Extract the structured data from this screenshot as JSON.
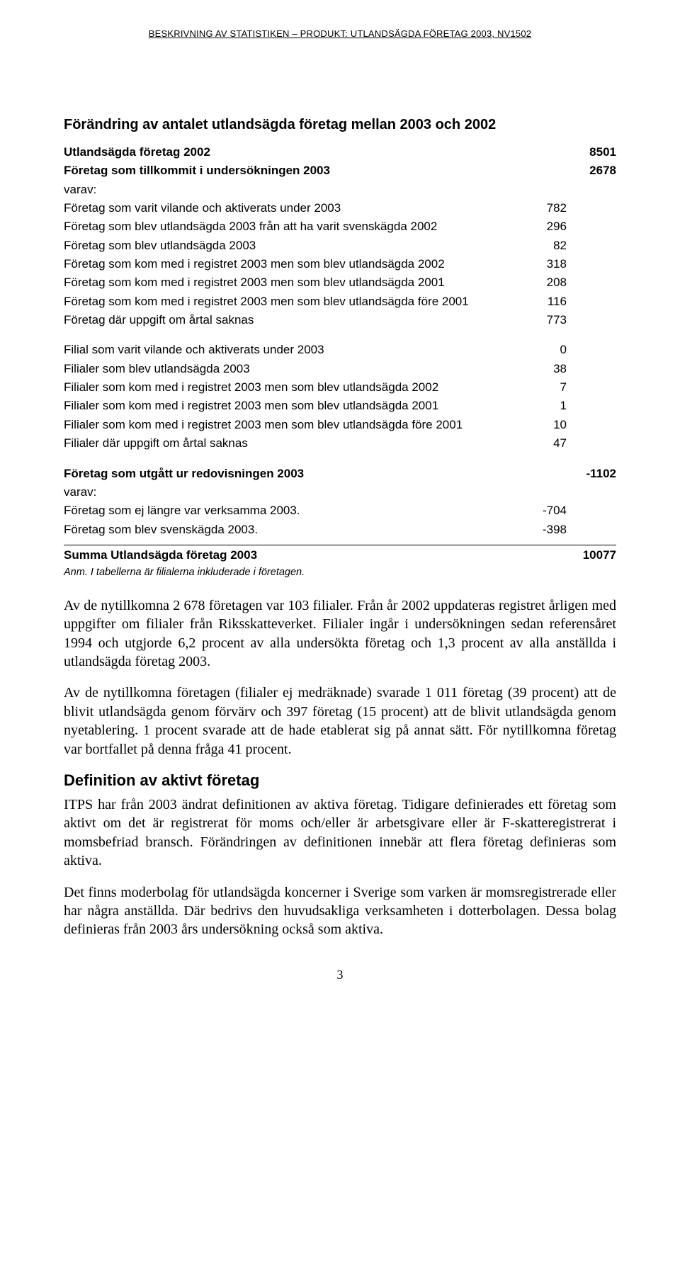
{
  "header": "BESKRIVNING AV STATISTIKEN – PRODUKT: UTLANDSÄGDA FÖRETAG 2003, NV1502",
  "table": {
    "title": "Förändring av antalet utlandsägda företag mellan 2003 och 2002",
    "rows_top": [
      {
        "label": "Utlandsägda företag 2002",
        "v1": "",
        "v2": "8501",
        "bold": true
      },
      {
        "label": "Företag som tillkommit i undersökningen 2003",
        "v1": "",
        "v2": "2678",
        "bold": true
      },
      {
        "label": "varav:",
        "v1": "",
        "v2": "",
        "bold": false
      },
      {
        "label": "Företag som varit vilande och aktiverats under 2003",
        "v1": "782",
        "v2": "",
        "bold": false
      },
      {
        "label": "Företag som blev utlandsägda 2003 från att ha varit svenskägda 2002",
        "v1": "296",
        "v2": "",
        "bold": false
      },
      {
        "label": "Företag som blev utlandsägda 2003",
        "v1": "82",
        "v2": "",
        "bold": false
      },
      {
        "label": "Företag som kom med i registret 2003 men som blev utlandsägda 2002",
        "v1": "318",
        "v2": "",
        "bold": false
      },
      {
        "label": "Företag som kom med i registret 2003 men som blev utlandsägda 2001",
        "v1": "208",
        "v2": "",
        "bold": false
      },
      {
        "label": "Företag som kom med i registret 2003 men som blev utlandsägda före 2001",
        "v1": "116",
        "v2": "",
        "bold": false
      },
      {
        "label": "Företag där uppgift om årtal saknas",
        "v1": "773",
        "v2": "",
        "bold": false
      }
    ],
    "rows_filial": [
      {
        "label": "Filial som varit vilande och aktiverats under 2003",
        "v1": "0",
        "v2": "",
        "bold": false
      },
      {
        "label": "Filialer som blev utlandsägda 2003",
        "v1": "38",
        "v2": "",
        "bold": false
      },
      {
        "label": "Filialer som kom med i registret 2003 men som blev utlandsägda 2002",
        "v1": "7",
        "v2": "",
        "bold": false
      },
      {
        "label": "Filialer som kom med i registret 2003 men som blev utlandsägda 2001",
        "v1": "1",
        "v2": "",
        "bold": false
      },
      {
        "label": "Filialer som kom med i registret 2003 men som blev utlandsägda före 2001",
        "v1": "10",
        "v2": "",
        "bold": false
      },
      {
        "label": "Filialer där uppgift om årtal saknas",
        "v1": "47",
        "v2": "",
        "bold": false
      }
    ],
    "rows_utgatt": [
      {
        "label": "Företag som utgått ur redovisningen 2003",
        "v1": "",
        "v2": "-1102",
        "bold": true
      },
      {
        "label": "varav:",
        "v1": "",
        "v2": "",
        "bold": false
      },
      {
        "label": "Företag som ej längre var verksamma 2003.",
        "v1": "-704",
        "v2": "",
        "bold": false
      },
      {
        "label": "Företag som blev svenskägda 2003.",
        "v1": "-398",
        "v2": "",
        "bold": false
      }
    ],
    "summa": {
      "label": "Summa Utlandsägda företag 2003",
      "v2": "10077"
    },
    "footnote": "Anm. I tabellerna är filialerna inkluderade i företagen."
  },
  "paragraphs": {
    "p1": "Av de nytillkomna 2 678 företagen var 103 filialer. Från år 2002 uppdateras registret årligen med uppgifter om filialer från Riksskatteverket. Filialer ingår i undersökningen sedan referensåret 1994 och utgjorde 6,2 procent av alla undersökta företag och 1,3 procent av alla anställda i utlandsägda företag 2003.",
    "p2": "Av de nytillkomna företagen (filialer ej medräknade) svarade 1 011 företag (39 procent) att de blivit utlandsägda genom förvärv och 397 företag (15 procent) att de blivit utlandsägda genom nyetablering. 1 procent svarade att de hade etablerat sig på annat sätt. För nytillkomna företag var bortfallet på denna fråga 41 procent.",
    "heading": "Definition av aktivt företag",
    "p3": "ITPS har från 2003 ändrat definitionen av aktiva företag. Tidigare definierades ett företag som aktivt om det är registrerat för moms och/eller är arbetsgivare eller är F-skatteregistrerat i momsbefriad bransch. Förändringen av definitionen innebär att flera företag definieras som aktiva.",
    "p4": "Det finns moderbolag för utlandsägda koncerner i Sverige som varken är momsregistrerade eller har några anställda. Där bedrivs den huvudsakliga verksamheten i dotterbolagen. Dessa bolag definieras från 2003 års undersökning också som aktiva."
  },
  "page_number": "3"
}
